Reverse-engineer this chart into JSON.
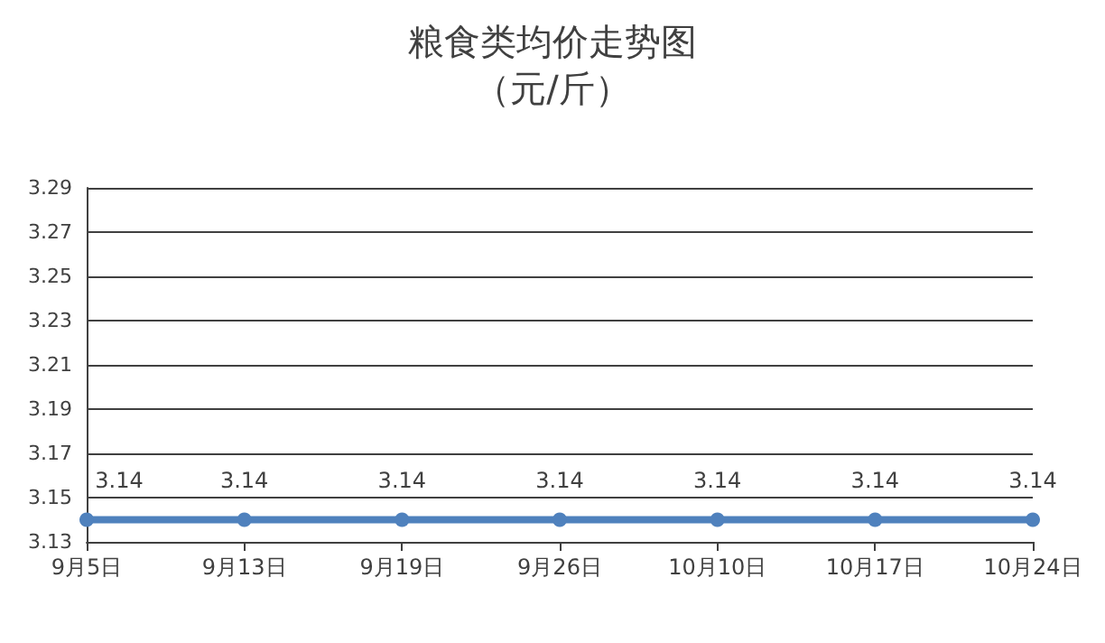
{
  "chart_data": {
    "type": "line",
    "title": "粮食类均价走势图",
    "subtitle": "（元/斤）",
    "categories": [
      "9月5日",
      "9月13日",
      "9月19日",
      "9月26日",
      "10月10日",
      "10月17日",
      "10月24日"
    ],
    "series": [
      {
        "color": "#4f81bd",
        "values": [
          3.14,
          3.14,
          3.14,
          3.14,
          3.14,
          3.14,
          3.14
        ]
      }
    ],
    "ylim": [
      3.13,
      3.29
    ],
    "yticks": [
      3.13,
      3.15,
      3.17,
      3.19,
      3.21,
      3.23,
      3.25,
      3.27,
      3.29
    ],
    "grid": "y",
    "marker": "circle",
    "line_style": "solid",
    "data_labels": true
  }
}
